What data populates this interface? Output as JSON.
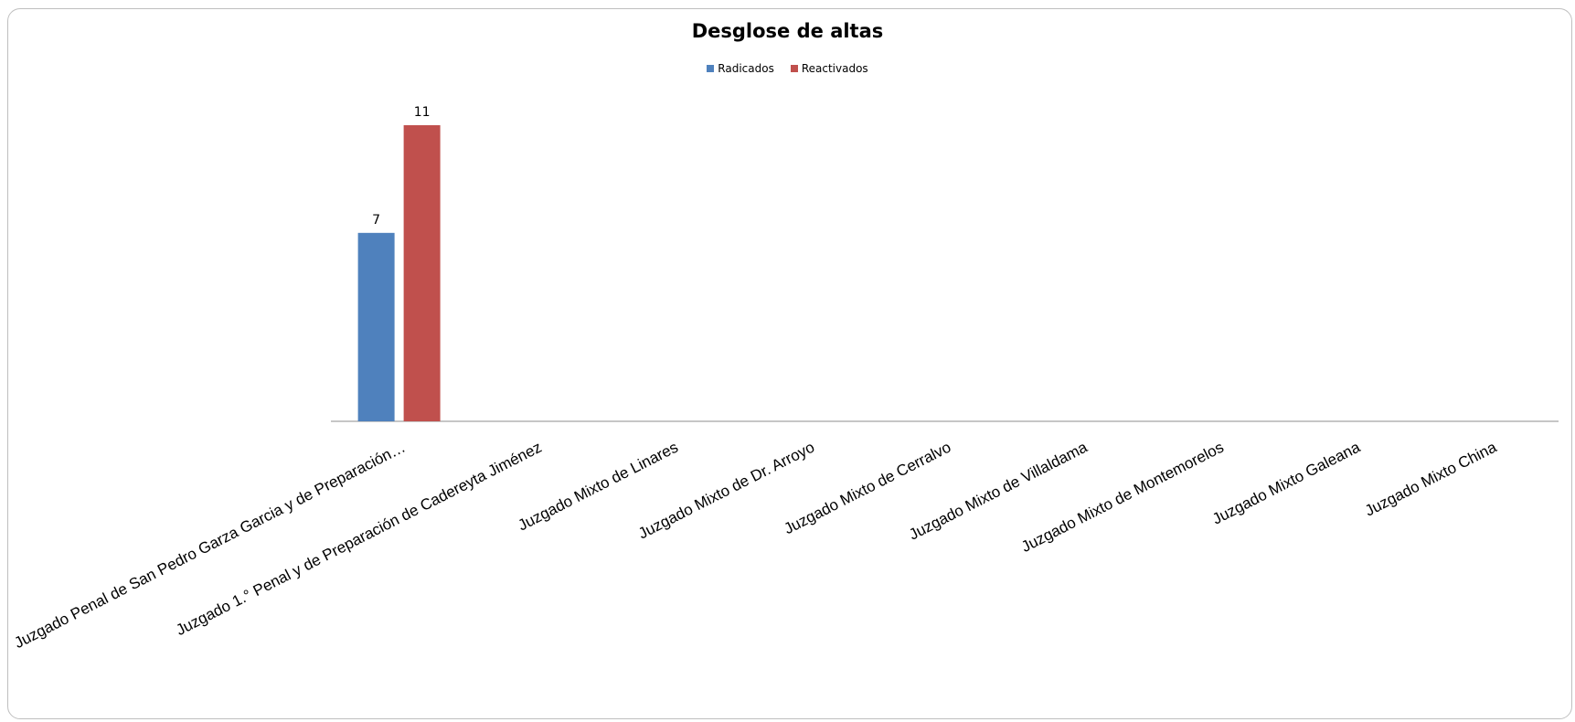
{
  "chart_data": {
    "type": "bar",
    "title": "Desglose de altas",
    "categories": [
      "Juzgado Penal de San Pedro Garza Garcia y de Preparación…",
      "Juzgado 1.° Penal y de Preparación de Cadereyta Jiménez",
      "Juzgado Mixto de Linares",
      "Juzgado Mixto de  Dr. Arroyo",
      "Juzgado Mixto de  Cerralvo",
      "Juzgado Mixto  de Villaldama",
      "Juzgado Mixto de  Montemorelos",
      "Juzgado Mixto Galeana",
      "Juzgado Mixto China"
    ],
    "series": [
      {
        "name": "Radicados",
        "color": "#4f81bd",
        "values": [
          7,
          null,
          null,
          null,
          null,
          null,
          null,
          null,
          null
        ]
      },
      {
        "name": "Reactivados",
        "color": "#c0504d",
        "values": [
          11,
          null,
          null,
          null,
          null,
          null,
          null,
          null,
          null
        ]
      }
    ],
    "ylim": [
      0,
      11
    ],
    "legend": "top-center",
    "grid": false
  }
}
